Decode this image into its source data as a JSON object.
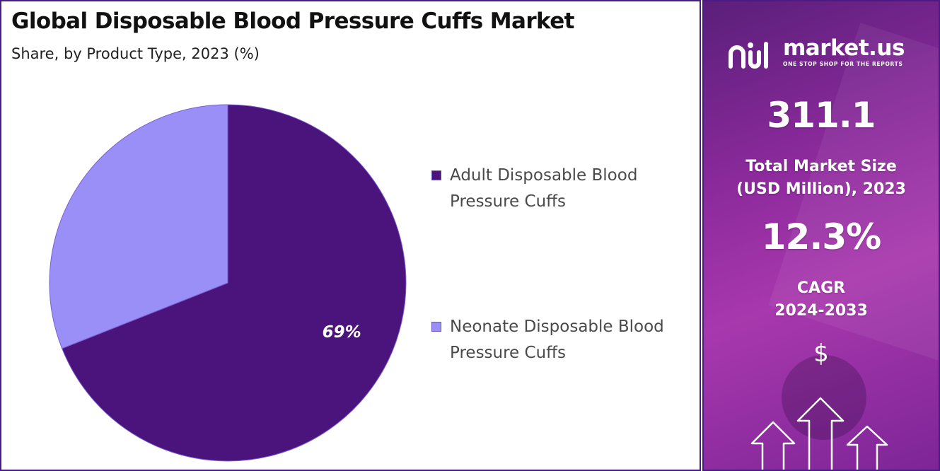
{
  "title": "Global Disposable Blood Pressure Cuffs Market",
  "subtitle": "Share, by Product Type, 2023 (%)",
  "colors": {
    "adult": "#4b137c",
    "neonate": "#9a8ff7",
    "panel_border": "#4a1a86",
    "panel_gradient_start": "#5a1f7a",
    "panel_gradient_end": "#a838ad"
  },
  "chart_data": {
    "type": "pie",
    "categories": [
      "Adult Disposable Blood Pressure Cuffs",
      "Neonate Disposable Blood Pressure Cuffs"
    ],
    "values": [
      69,
      31
    ],
    "data_labels": [
      "69%",
      ""
    ],
    "legend_entries": [
      {
        "line1": "Adult Disposable Blood",
        "line2": "Pressure Cuffs",
        "color": "#4b137c"
      },
      {
        "line1": "Neonate Disposable Blood",
        "line2": "Pressure Cuffs",
        "color": "#9a8ff7"
      }
    ],
    "legend_position": "right"
  },
  "side_panel": {
    "logo_text": "market.us",
    "logo_tagline": "ONE STOP SHOP FOR THE REPORTS",
    "market_size_value": "311.1",
    "market_size_label_line1": "Total Market Size",
    "market_size_label_line2": "(USD Million), 2023",
    "cagr_value": "12.3%",
    "cagr_label_line1": "CAGR",
    "cagr_label_line2": "2024-2033",
    "currency_symbol": "$",
    "icons": [
      "market-us-logo-icon",
      "up-arrows-icon"
    ]
  }
}
